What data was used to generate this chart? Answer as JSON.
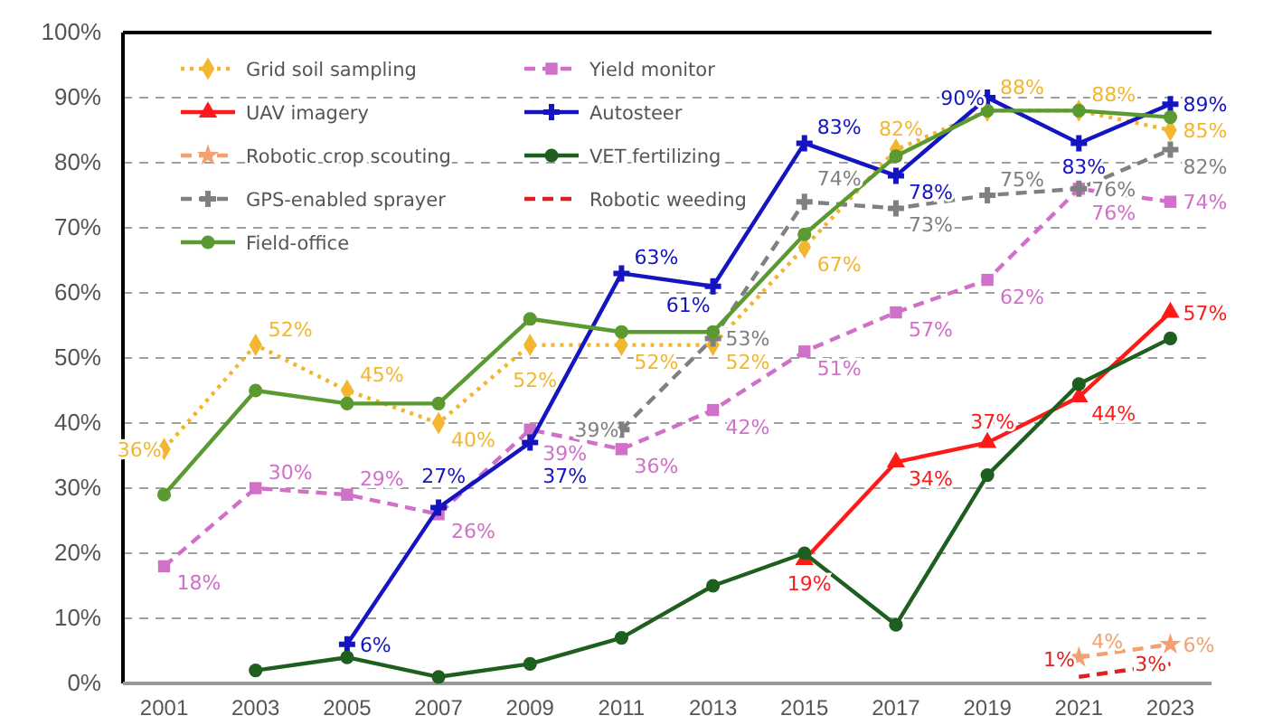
{
  "chart_data": {
    "type": "line",
    "categories": [
      "2001",
      "2003",
      "2005",
      "2007",
      "2009",
      "2011",
      "2013",
      "2015",
      "2017",
      "2019",
      "2021",
      "2023"
    ],
    "ylim": [
      0,
      100
    ],
    "yticks": [
      {
        "value": 0,
        "label": "0%"
      },
      {
        "value": 10,
        "label": "10%"
      },
      {
        "value": 20,
        "label": "20%"
      },
      {
        "value": 30,
        "label": "30%"
      },
      {
        "value": 40,
        "label": "40%"
      },
      {
        "value": 50,
        "label": "50%"
      },
      {
        "value": 60,
        "label": "60%"
      },
      {
        "value": 70,
        "label": "70%"
      },
      {
        "value": 80,
        "label": "80%"
      },
      {
        "value": 90,
        "label": "90%"
      },
      {
        "value": 100,
        "label": "100%"
      }
    ],
    "grid": "y",
    "legend": "top left",
    "series": [
      {
        "name": "Grid soil sampling",
        "color": "#f2b630",
        "line_style": "dotted",
        "marker": "diamond",
        "values": [
          36,
          52,
          45,
          40,
          52,
          52,
          52,
          67,
          82,
          88,
          88,
          85
        ],
        "value_labels": [
          "36%",
          "52%",
          "45%",
          "40%",
          "52%",
          "52%",
          "52%",
          "67%",
          "82%",
          "88%",
          "88%",
          "85%"
        ]
      },
      {
        "name": "Yield monitor",
        "color": "#d070c8",
        "line_style": "dashed",
        "marker": "square",
        "values": [
          18,
          30,
          29,
          26,
          39,
          36,
          42,
          51,
          57,
          62,
          76,
          74
        ],
        "value_labels": [
          "18%",
          "30%",
          "29%",
          "26%",
          "39%",
          "36%",
          "42%",
          "51%",
          "57%",
          "62%",
          "76%",
          "74%"
        ]
      },
      {
        "name": "UAV imagery",
        "color": "#ff1a1a",
        "line_style": "solid",
        "marker": "triangle",
        "values": [
          null,
          null,
          null,
          null,
          null,
          null,
          null,
          19,
          34,
          37,
          44,
          57
        ],
        "value_labels": [
          null,
          null,
          null,
          null,
          null,
          null,
          null,
          "19%",
          "34%",
          "37%",
          "44%",
          "57%"
        ]
      },
      {
        "name": "Autosteer",
        "color": "#1414c0",
        "line_style": "solid",
        "marker": "cross",
        "values": [
          null,
          null,
          6,
          27,
          37,
          63,
          61,
          83,
          78,
          90,
          83,
          89
        ],
        "value_labels": [
          null,
          null,
          "6%",
          "27%",
          "37%",
          "63%",
          "61%",
          "83%",
          "78%",
          "90%",
          "83%",
          "89%"
        ]
      },
      {
        "name": "Robotic crop scouting",
        "color": "#f4a070",
        "line_style": "dashed",
        "marker": "star",
        "values": [
          null,
          null,
          null,
          null,
          null,
          null,
          null,
          null,
          null,
          null,
          4,
          6
        ],
        "value_labels": [
          null,
          null,
          null,
          null,
          null,
          null,
          null,
          null,
          null,
          null,
          "4%",
          "6%"
        ]
      },
      {
        "name": "VET fertilizing",
        "color": "#1e5e1e",
        "line_style": "solid",
        "marker": "circle",
        "values": [
          null,
          2,
          4,
          1,
          3,
          7,
          15,
          20,
          9,
          32,
          46,
          53
        ]
      },
      {
        "name": "GPS-enabled sprayer",
        "color": "#808080",
        "line_style": "dashed",
        "marker": "cross",
        "values": [
          null,
          null,
          null,
          null,
          null,
          39,
          53,
          74,
          73,
          75,
          76,
          82
        ],
        "value_labels": [
          null,
          null,
          null,
          null,
          null,
          "39%",
          "53%",
          "74%",
          "73%",
          "75%",
          "76%",
          "82%"
        ]
      },
      {
        "name": "Robotic weeding",
        "color": "#e02020",
        "line_style": "dashed",
        "marker": "none",
        "values": [
          null,
          null,
          null,
          null,
          null,
          null,
          null,
          null,
          null,
          null,
          1,
          3
        ],
        "value_labels": [
          null,
          null,
          null,
          null,
          null,
          null,
          null,
          null,
          null,
          null,
          "1%",
          "3%"
        ]
      },
      {
        "name": "Field-office",
        "color": "#5a9a30",
        "line_style": "solid",
        "marker": "circle",
        "values": [
          29,
          45,
          43,
          43,
          56,
          54,
          54,
          69,
          81,
          88,
          88,
          87
        ]
      }
    ]
  }
}
